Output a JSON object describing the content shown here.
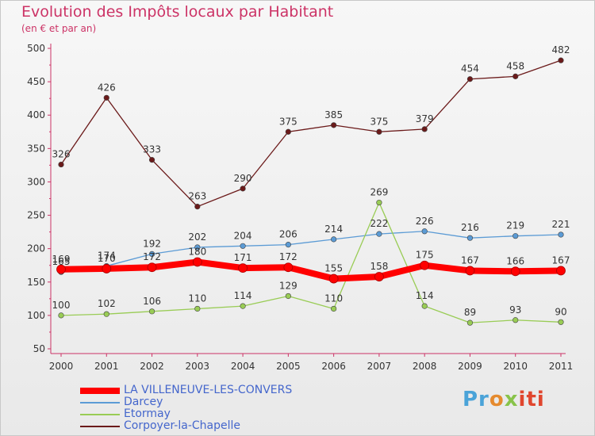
{
  "chart_data": {
    "type": "line",
    "title": "Evolution des Impôts locaux par Habitant",
    "subtitle": "(en € et par an)",
    "xlabel": "",
    "ylabel": "",
    "categories": [
      "2000",
      "2001",
      "2002",
      "2003",
      "2004",
      "2005",
      "2006",
      "2007",
      "2008",
      "2009",
      "2010",
      "2011"
    ],
    "ylim": [
      50,
      500
    ],
    "yticks": [
      50,
      100,
      150,
      200,
      250,
      300,
      350,
      400,
      450,
      500
    ],
    "grid": false,
    "legend_position": "bottom-left",
    "series": [
      {
        "name": "Corpoyer-la-Chapelle",
        "color": "#6b1a1a",
        "values": [
          326,
          426,
          333,
          263,
          290,
          375,
          385,
          375,
          379,
          454,
          458,
          482
        ]
      },
      {
        "name": "Darcey",
        "color": "#5b9bd5",
        "values": [
          165,
          174,
          192,
          202,
          204,
          206,
          214,
          222,
          226,
          216,
          219,
          221
        ]
      },
      {
        "name": "Etormay",
        "color": "#99cc55",
        "values": [
          100,
          102,
          106,
          110,
          114,
          129,
          110,
          269,
          114,
          89,
          93,
          90
        ]
      },
      {
        "name": "LA VILLENEUVE-LES-CONVERS",
        "color": "#ff0000",
        "values": [
          169,
          170,
          172,
          180,
          171,
          172,
          155,
          158,
          175,
          167,
          166,
          167
        ]
      }
    ],
    "legend_order": [
      "LA VILLENEUVE-LES-CONVERS",
      "Darcey",
      "Etormay",
      "Corpoyer-la-Chapelle"
    ]
  },
  "logo": {
    "parts": [
      "Pr",
      "o",
      "x",
      "iti"
    ],
    "colors": [
      "#4aa3d8",
      "#e58a2e",
      "#88c34a",
      "#e0462e"
    ]
  }
}
